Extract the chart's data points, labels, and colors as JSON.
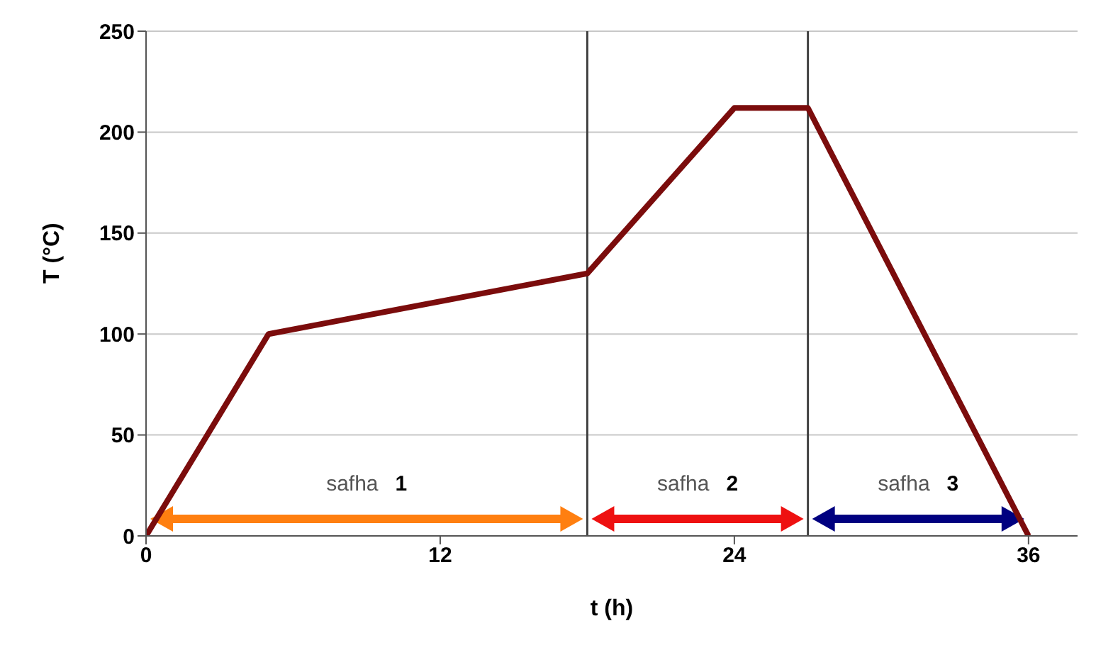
{
  "chart_data": {
    "type": "line",
    "xlabel": "t (h)",
    "ylabel": "T (°C)",
    "x": [
      0,
      5,
      18,
      24,
      27,
      36
    ],
    "series": [
      {
        "color": "#7b0c0c",
        "values": [
          0,
          100,
          130,
          212,
          212,
          0
        ]
      }
    ],
    "xlim": [
      0,
      38
    ],
    "xticks": [
      0,
      12,
      24,
      36
    ],
    "ylim": [
      0,
      250
    ],
    "yticks": [
      0,
      50,
      100,
      150,
      200,
      250
    ],
    "grid": "y",
    "marker": "none",
    "line_style": "solid",
    "ref_lines": [
      {
        "axis": "x",
        "value": 18,
        "color": "#404040"
      },
      {
        "axis": "x",
        "value": 27,
        "color": "#404040"
      }
    ],
    "annotations": [
      "safha 1",
      "safha 2",
      "safha 3"
    ]
  }
}
